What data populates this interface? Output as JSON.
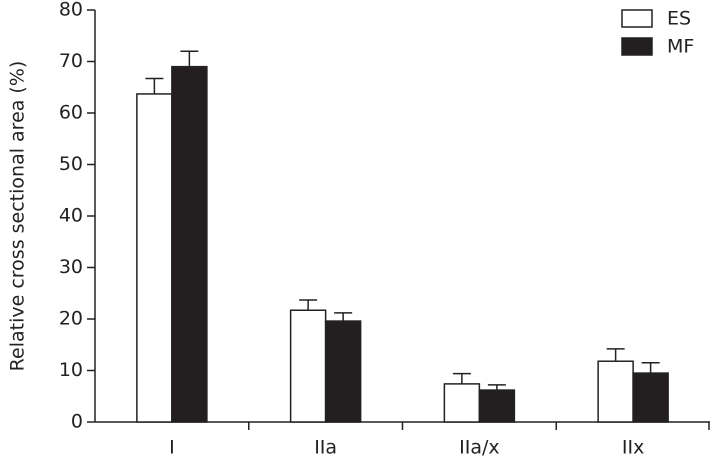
{
  "chart_data": {
    "type": "bar",
    "y_label": "Relative cross sectional area (%)",
    "categories": [
      "I",
      "IIa",
      "IIa/x",
      "IIx"
    ],
    "series": [
      {
        "name": "ES",
        "color": "#ffffff",
        "values": [
          63.7,
          21.7,
          7.4,
          11.8
        ],
        "errors": [
          3.0,
          2.0,
          2.0,
          2.4
        ]
      },
      {
        "name": "MF",
        "color": "#231f20",
        "values": [
          69.0,
          19.6,
          6.2,
          9.5
        ],
        "errors": [
          3.0,
          1.6,
          1.0,
          2.0
        ]
      }
    ],
    "ylim": [
      0,
      80
    ],
    "yticks": [
      0,
      10,
      20,
      30,
      40,
      50,
      60,
      70,
      80
    ],
    "legend": "upper right"
  }
}
